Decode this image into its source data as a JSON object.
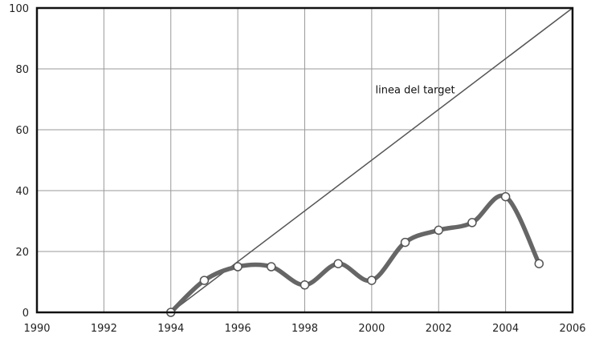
{
  "chart_data": {
    "type": "line",
    "title": "",
    "xlabel": "",
    "ylabel": "",
    "xlim": [
      1990,
      2006
    ],
    "ylim": [
      0,
      100
    ],
    "x_ticks": [
      1990,
      1992,
      1994,
      1996,
      1998,
      2000,
      2002,
      2004,
      2006
    ],
    "y_ticks": [
      0,
      20,
      40,
      60,
      80,
      100
    ],
    "grid": true,
    "legend": null,
    "annotations": [
      {
        "text": "linea del target",
        "x": 2001.3,
        "y": 72
      }
    ],
    "target_line": {
      "x": [
        1994,
        2006
      ],
      "y": [
        0,
        100
      ]
    },
    "series": [
      {
        "x": [
          1994,
          1995,
          1996,
          1997,
          1998,
          1999,
          2000,
          2001,
          2002,
          2003,
          2004,
          2005
        ],
        "values": [
          0,
          10.5,
          15,
          15,
          9,
          16,
          10.5,
          23,
          27,
          29.5,
          38,
          16
        ]
      }
    ],
    "colors": {
      "series": "#666666",
      "target": "#555555",
      "grid": "#9a9a9a",
      "frame": "#111111"
    }
  }
}
